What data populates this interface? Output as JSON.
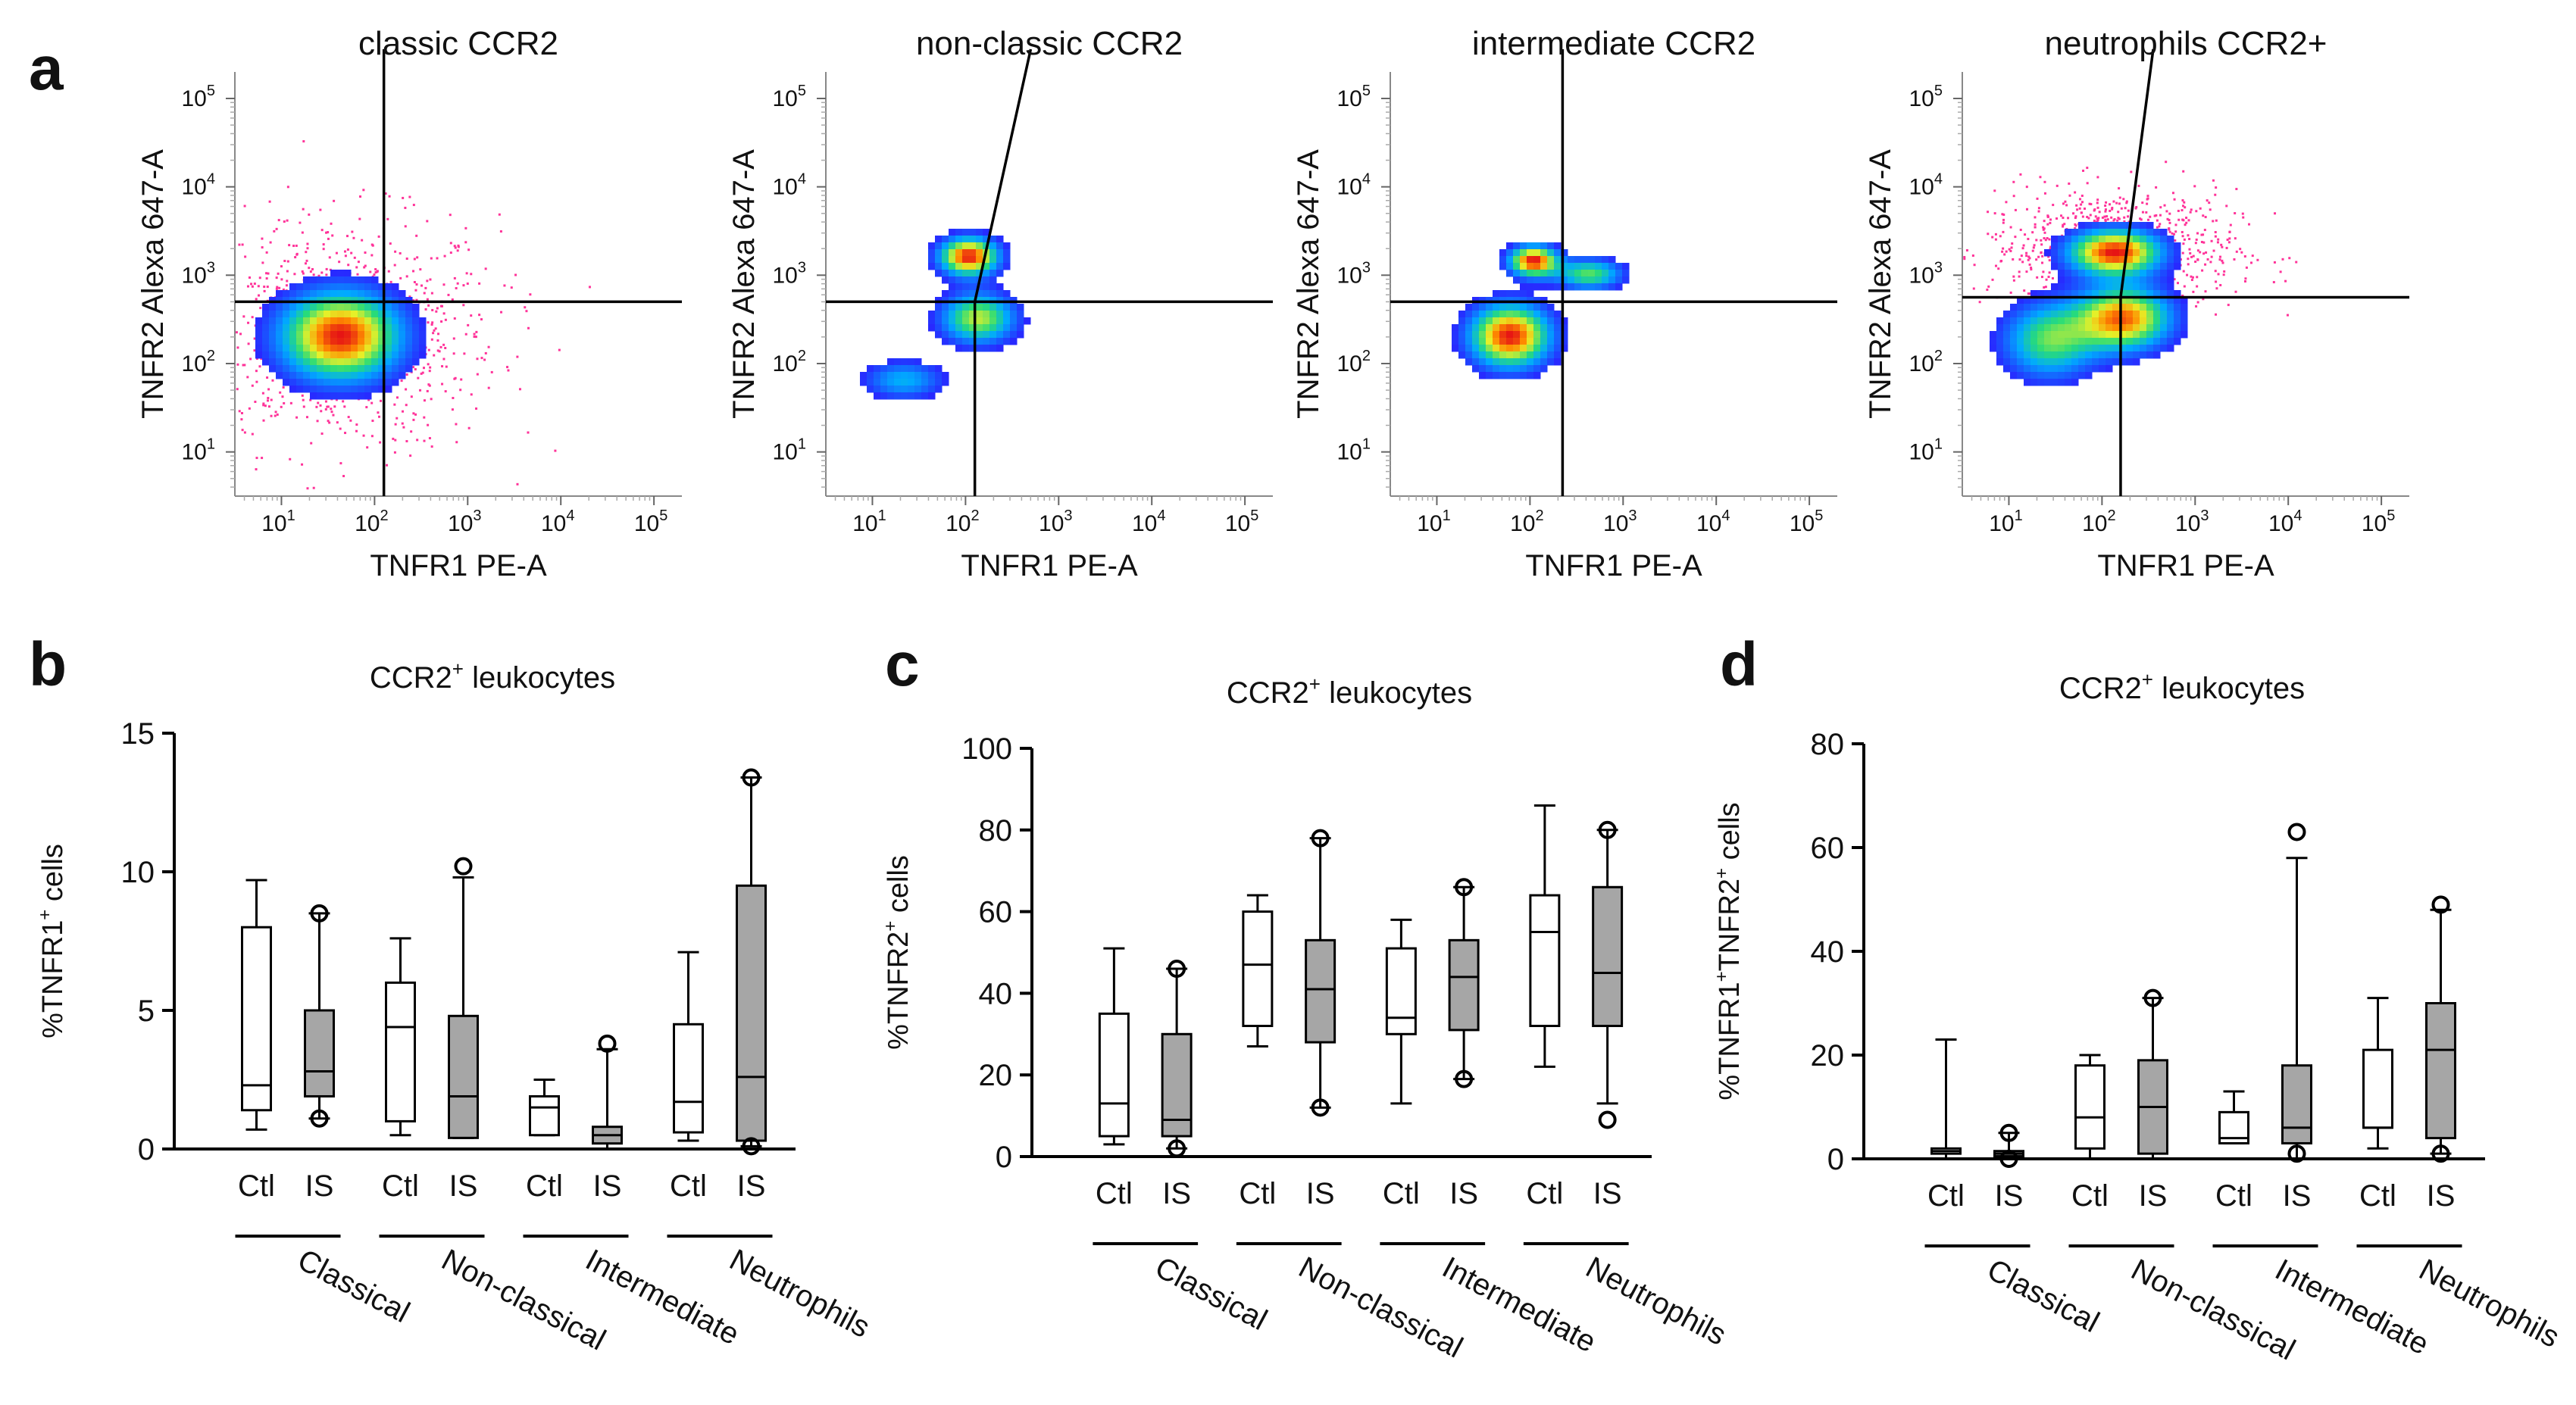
{
  "figure": {
    "panel_letters": [
      "a",
      "b",
      "c",
      "d"
    ]
  },
  "chart_data": [
    {
      "panel": "a",
      "type": "scatter",
      "subtype": "flow-cytometry-density",
      "title": "classic CCR2",
      "xlabel": "TNFR1 PE-A",
      "ylabel": "TNFR2 Alexa 647-A",
      "axis_scale": "log10",
      "xticks": [
        "10",
        "10",
        "10",
        "10",
        "10"
      ],
      "xtick_exponents": [
        "1",
        "2",
        "3",
        "4",
        "5"
      ],
      "yticks": [
        "10",
        "10",
        "10",
        "10",
        "10"
      ],
      "ytick_exponents": [
        "1",
        "2",
        "3",
        "4",
        "5"
      ],
      "xlim_log": [
        0.5,
        5.3
      ],
      "ylim_log": [
        0.5,
        5.3
      ],
      "gate_x_log": 2.1,
      "gate_y_log": 2.7,
      "populations": [
        {
          "cx_log": 1.6,
          "cy_log": 2.35,
          "sx_log": 0.45,
          "sy_log": 0.35,
          "peak": 1.0
        }
      ],
      "background_scatter": true
    },
    {
      "panel": "a",
      "type": "scatter",
      "subtype": "flow-cytometry-density",
      "title": "non-classic CCR2",
      "xlabel": "TNFR1 PE-A",
      "ylabel": "TNFR2 Alexa 647-A",
      "axis_scale": "log10",
      "xticks": [
        "10",
        "10",
        "10",
        "10",
        "10"
      ],
      "xtick_exponents": [
        "1",
        "2",
        "3",
        "4",
        "5"
      ],
      "yticks": [
        "10",
        "10",
        "10",
        "10",
        "10"
      ],
      "ytick_exponents": [
        "1",
        "2",
        "3",
        "4",
        "5"
      ],
      "xlim_log": [
        0.5,
        5.3
      ],
      "ylim_log": [
        0.5,
        5.3
      ],
      "gate_x_log": 2.1,
      "gate_y_log": 2.7,
      "gate_top_x_log": 2.7,
      "populations": [
        {
          "cx_log": 2.0,
          "cy_log": 3.25,
          "sx_log": 0.22,
          "sy_log": 0.15,
          "peak": 1.0
        },
        {
          "cx_log": 2.1,
          "cy_log": 2.55,
          "sx_log": 0.28,
          "sy_log": 0.2,
          "peak": 0.7
        },
        {
          "cx_log": 1.3,
          "cy_log": 1.85,
          "sx_log": 0.3,
          "sy_log": 0.15,
          "peak": 0.4
        }
      ],
      "background_scatter": false
    },
    {
      "panel": "a",
      "type": "scatter",
      "subtype": "flow-cytometry-density",
      "title": "intermediate CCR2",
      "xlabel": "TNFR1 PE-A",
      "ylabel": "TNFR2 Alexa 647-A",
      "axis_scale": "log10",
      "xticks": [
        "10",
        "10",
        "10",
        "10",
        "10"
      ],
      "xtick_exponents": [
        "1",
        "2",
        "3",
        "4",
        "5"
      ],
      "yticks": [
        "10",
        "10",
        "10",
        "10",
        "10"
      ],
      "ytick_exponents": [
        "1",
        "2",
        "3",
        "4",
        "5"
      ],
      "xlim_log": [
        0.5,
        5.3
      ],
      "ylim_log": [
        0.5,
        5.3
      ],
      "gate_x_log": 2.35,
      "gate_y_log": 2.7,
      "populations": [
        {
          "cx_log": 2.0,
          "cy_log": 3.2,
          "sx_log": 0.18,
          "sy_log": 0.12,
          "peak": 1.0
        },
        {
          "cx_log": 1.75,
          "cy_log": 2.35,
          "sx_log": 0.3,
          "sy_log": 0.25,
          "peak": 1.0
        },
        {
          "cx_log": 2.6,
          "cy_log": 3.05,
          "sx_log": 0.25,
          "sy_log": 0.12,
          "peak": 0.6
        }
      ],
      "background_scatter": false
    },
    {
      "panel": "a",
      "type": "scatter",
      "subtype": "flow-cytometry-density",
      "title": "neutrophils CCR2+",
      "xlabel": "TNFR1 PE-A",
      "ylabel": "TNFR2 Alexa 647-A",
      "axis_scale": "log10",
      "xticks": [
        "10",
        "10",
        "10",
        "10",
        "10"
      ],
      "xtick_exponents": [
        "1",
        "2",
        "3",
        "4",
        "5"
      ],
      "yticks": [
        "10",
        "10",
        "10",
        "10",
        "10"
      ],
      "ytick_exponents": [
        "1",
        "2",
        "3",
        "4",
        "5"
      ],
      "xlim_log": [
        0.5,
        5.3
      ],
      "ylim_log": [
        0.5,
        5.3
      ],
      "gate_x_log": 2.2,
      "gate_y_log": 2.75,
      "gate_top_x_log": 2.55,
      "populations": [
        {
          "cx_log": 2.1,
          "cy_log": 3.3,
          "sx_log": 0.35,
          "sy_log": 0.18,
          "peak": 1.0
        },
        {
          "cx_log": 2.2,
          "cy_log": 2.55,
          "sx_log": 0.35,
          "sy_log": 0.25,
          "peak": 0.9
        },
        {
          "cx_log": 1.4,
          "cy_log": 2.3,
          "sx_log": 0.35,
          "sy_log": 0.3,
          "peak": 0.6
        }
      ],
      "background_scatter": true
    },
    {
      "panel": "b",
      "type": "box",
      "title": "CCR2",
      "title_superscript": "+",
      "title_suffix": " leukocytes",
      "ylabel_parts": [
        "%TNFR1",
        "+",
        " cells"
      ],
      "ylim": [
        0,
        15
      ],
      "yticks": [
        "0",
        "5",
        "10",
        "15"
      ],
      "categories": [
        "Ctl",
        "IS",
        "Ctl",
        "IS",
        "Ctl",
        "IS",
        "Ctl",
        "IS"
      ],
      "groups": [
        "Classical",
        "Non-classical",
        "Intermediate",
        "Neutrophils"
      ],
      "colors": {
        "Ctl": "#ffffff",
        "IS": "#a6a6a6"
      },
      "series": [
        {
          "name": "Classical Ctl",
          "condition": "Ctl",
          "min": 0.7,
          "q1": 1.4,
          "median": 2.3,
          "q3": 8.0,
          "max": 9.7,
          "outliers": []
        },
        {
          "name": "Classical IS",
          "condition": "IS",
          "min": 1.1,
          "q1": 1.9,
          "median": 2.8,
          "q3": 5.0,
          "max": 8.5,
          "outliers": [
            1.1,
            8.5
          ]
        },
        {
          "name": "Non-classical Ctl",
          "condition": "Ctl",
          "min": 0.5,
          "q1": 1.0,
          "median": 4.4,
          "q3": 6.0,
          "max": 7.6,
          "outliers": []
        },
        {
          "name": "Non-classical IS",
          "condition": "IS",
          "min": 0.4,
          "q1": 0.4,
          "median": 1.9,
          "q3": 4.8,
          "max": 9.8,
          "outliers": [
            10.2
          ]
        },
        {
          "name": "Intermediate Ctl",
          "condition": "Ctl",
          "min": 0.5,
          "q1": 0.5,
          "median": 1.5,
          "q3": 1.9,
          "max": 2.5,
          "outliers": []
        },
        {
          "name": "Intermediate IS",
          "condition": "IS",
          "min": 0.0,
          "q1": 0.2,
          "median": 0.5,
          "q3": 0.8,
          "max": 3.6,
          "outliers": [
            3.8
          ]
        },
        {
          "name": "Neutrophils Ctl",
          "condition": "Ctl",
          "min": 0.3,
          "q1": 0.6,
          "median": 1.7,
          "q3": 4.5,
          "max": 7.1,
          "outliers": []
        },
        {
          "name": "Neutrophils IS",
          "condition": "IS",
          "min": 0.1,
          "q1": 0.3,
          "median": 2.6,
          "q3": 9.5,
          "max": 13.4,
          "outliers": [
            0.1,
            13.4
          ]
        }
      ]
    },
    {
      "panel": "c",
      "type": "box",
      "title": "CCR2",
      "title_superscript": "+",
      "title_suffix": " leukocytes",
      "ylabel_parts": [
        "%TNFR2",
        "+",
        " cells"
      ],
      "ylim": [
        0,
        100
      ],
      "yticks": [
        "0",
        "20",
        "40",
        "60",
        "80",
        "100"
      ],
      "categories": [
        "Ctl",
        "IS",
        "Ctl",
        "IS",
        "Ctl",
        "IS",
        "Ctl",
        "IS"
      ],
      "groups": [
        "Classical",
        "Non-classical",
        "Intermediate",
        "Neutrophils"
      ],
      "colors": {
        "Ctl": "#ffffff",
        "IS": "#a6a6a6"
      },
      "series": [
        {
          "name": "Classical Ctl",
          "condition": "Ctl",
          "min": 3,
          "q1": 5,
          "median": 13,
          "q3": 35,
          "max": 51,
          "outliers": []
        },
        {
          "name": "Classical IS",
          "condition": "IS",
          "min": 2,
          "q1": 5,
          "median": 9,
          "q3": 30,
          "max": 46,
          "outliers": [
            2,
            46
          ]
        },
        {
          "name": "Non-classical Ctl",
          "condition": "Ctl",
          "min": 27,
          "q1": 32,
          "median": 47,
          "q3": 60,
          "max": 64,
          "outliers": []
        },
        {
          "name": "Non-classical IS",
          "condition": "IS",
          "min": 12,
          "q1": 28,
          "median": 41,
          "q3": 53,
          "max": 78,
          "outliers": [
            12,
            78
          ]
        },
        {
          "name": "Intermediate Ctl",
          "condition": "Ctl",
          "min": 13,
          "q1": 30,
          "median": 34,
          "q3": 51,
          "max": 58,
          "outliers": []
        },
        {
          "name": "Intermediate IS",
          "condition": "IS",
          "min": 19,
          "q1": 31,
          "median": 44,
          "q3": 53,
          "max": 66,
          "outliers": [
            19,
            66
          ]
        },
        {
          "name": "Neutrophils Ctl",
          "condition": "Ctl",
          "min": 22,
          "q1": 32,
          "median": 55,
          "q3": 64,
          "max": 86,
          "outliers": []
        },
        {
          "name": "Neutrophils IS",
          "condition": "IS",
          "min": 13,
          "q1": 32,
          "median": 45,
          "q3": 66,
          "max": 80,
          "outliers": [
            9,
            80
          ]
        }
      ]
    },
    {
      "panel": "d",
      "type": "box",
      "title": "CCR2",
      "title_superscript": "+",
      "title_suffix": " leukocytes",
      "ylabel_parts": [
        "%TNFR1",
        "+",
        "TNFR2",
        "+",
        " cells"
      ],
      "ylim": [
        0,
        80
      ],
      "yticks": [
        "0",
        "20",
        "40",
        "60",
        "80"
      ],
      "categories": [
        "Ctl",
        "IS",
        "Ctl",
        "IS",
        "Ctl",
        "IS",
        "Ctl",
        "IS"
      ],
      "groups": [
        "Classical",
        "Non-classical",
        "Intermediate",
        "Neutrophils"
      ],
      "colors": {
        "Ctl": "#ffffff",
        "IS": "#a6a6a6"
      },
      "series": [
        {
          "name": "Classical Ctl",
          "condition": "Ctl",
          "min": 0,
          "q1": 1,
          "median": 1.5,
          "q3": 2,
          "max": 23,
          "outliers": []
        },
        {
          "name": "Classical IS",
          "condition": "IS",
          "min": 0,
          "q1": 0.5,
          "median": 1,
          "q3": 1.5,
          "max": 5,
          "outliers": [
            0,
            5
          ]
        },
        {
          "name": "Non-classical Ctl",
          "condition": "Ctl",
          "min": 0,
          "q1": 2,
          "median": 8,
          "q3": 18,
          "max": 20,
          "outliers": []
        },
        {
          "name": "Non-classical IS",
          "condition": "IS",
          "min": 0,
          "q1": 1,
          "median": 10,
          "q3": 19,
          "max": 31,
          "outliers": [
            31
          ]
        },
        {
          "name": "Intermediate Ctl",
          "condition": "Ctl",
          "min": 3,
          "q1": 3,
          "median": 4,
          "q3": 9,
          "max": 13,
          "outliers": []
        },
        {
          "name": "Intermediate IS",
          "condition": "IS",
          "min": 0,
          "q1": 3,
          "median": 6,
          "q3": 18,
          "max": 58,
          "outliers": [
            1,
            63
          ]
        },
        {
          "name": "Neutrophils Ctl",
          "condition": "Ctl",
          "min": 2,
          "q1": 6,
          "median": 6,
          "q3": 21,
          "max": 31,
          "outliers": []
        },
        {
          "name": "Neutrophils IS",
          "condition": "IS",
          "min": 1,
          "q1": 4,
          "median": 21,
          "q3": 30,
          "max": 48,
          "outliers": [
            1,
            49
          ]
        }
      ]
    }
  ]
}
